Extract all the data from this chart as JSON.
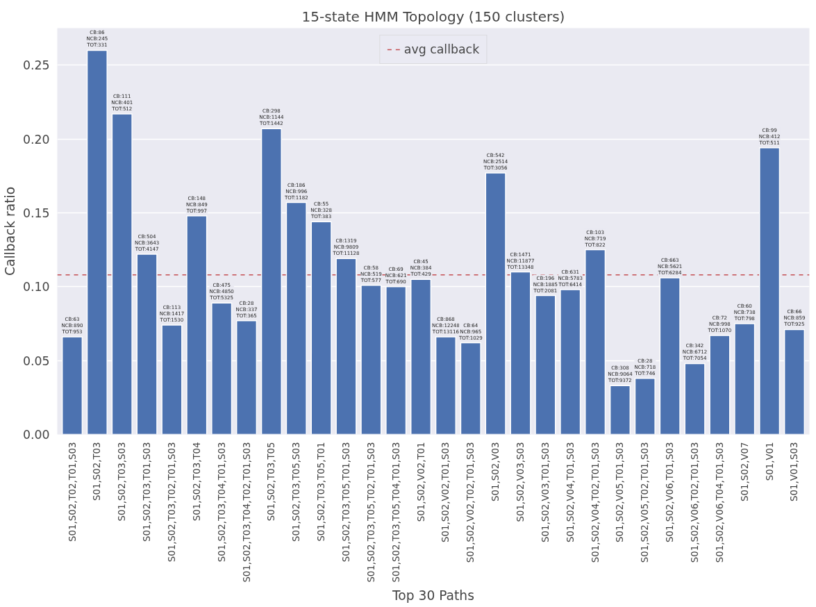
{
  "chart_data": {
    "type": "bar",
    "title": "15-state HMM Topology (150 clusters)",
    "xlabel": "Top 30 Paths",
    "ylabel": "Callback ratio",
    "categories": [
      "S01,S02,T02,T01,S03",
      "S01,S02,T03",
      "S01,S02,T03,S03",
      "S01,S02,T03,T01,S03",
      "S01,S02,T03,T02,T01,S03",
      "S01,S02,T03,T04",
      "S01,S02,T03,T04,T01,S03",
      "S01,S02,T03,T04,T02,T01,S03",
      "S01,S02,T03,T05",
      "S01,S02,T03,T05,S03",
      "S01,S02,T03,T05,T01",
      "S01,S02,T03,T05,T01,S03",
      "S01,S02,T03,T05,T02,T01,S03",
      "S01,S02,T03,T05,T04,T01,S03",
      "S01,S02,V02,T01",
      "S01,S02,V02,T01,S03",
      "S01,S02,V02,T02,T01,S03",
      "S01,S02,V03",
      "S01,S02,V03,S03",
      "S01,S02,V03,T01,S03",
      "S01,S02,V04,T01,S03",
      "S01,S02,V04,T02,T01,S03",
      "S01,S02,V05,T01,S03",
      "S01,S02,V05,T02,T01,S03",
      "S01,S02,V06,T01,S03",
      "S01,S02,V06,T02,T01,S03",
      "S01,S02,V06,T04,T01,S03",
      "S01,S02,V07",
      "S01,V01",
      "S01,V01,S03"
    ],
    "series": [
      {
        "color": "#4c72b0",
        "values": [
          0.066,
          0.26,
          0.217,
          0.122,
          0.074,
          0.148,
          0.089,
          0.077,
          0.207,
          0.157,
          0.144,
          0.119,
          0.101,
          0.1,
          0.105,
          0.066,
          0.062,
          0.177,
          0.11,
          0.094,
          0.098,
          0.125,
          0.033,
          0.038,
          0.106,
          0.048,
          0.067,
          0.075,
          0.194,
          0.071
        ],
        "value_labels": [
          "CB:63\nNCB:890\nTOT:953",
          "CB:86\nNCB:245\nTOT:331",
          "CB:111\nNCB:401\nTOT:512",
          "CB:504\nNCB:3643\nTOT:4147",
          "CB:113\nNCB:1417\nTOT:1530",
          "CB:148\nNCB:849\nTOT:997",
          "CB:475\nNCB:4850\nTOT:5325",
          "CB:28\nNCB:337\nTOT:365",
          "CB:298\nNCB:1144\nTOT:1442",
          "CB:186\nNCB:996\nTOT:1182",
          "CB:55\nNCB:328\nTOT:383",
          "CB:1319\nNCB:9809\nTOT:11128",
          "CB:58\nNCB:519\nTOT:577",
          "CB:69\nNCB:621\nTOT:690",
          "CB:45\nNCB:384\nTOT:429",
          "CB:868\nNCB:12248\nTOT:13116",
          "CB:64\nNCB:965\nTOT:1029",
          "CB:542\nNCB:2514\nTOT:3056",
          "CB:1471\nNCB:11877\nTOT:13348",
          "CB:196\nNCB:1885\nTOT:2081",
          "CB:631\nNCB:5783\nTOT:6414",
          "CB:103\nNCB:719\nTOT:822",
          "CB:308\nNCB:9064\nTOT:9372",
          "CB:28\nNCB:718\nTOT:746",
          "CB:663\nNCB:5621\nTOT:6284",
          "CB:342\nNCB:6712\nTOT:7054",
          "CB:72\nNCB:998\nTOT:1070",
          "CB:60\nNCB:738\nTOT:798",
          "CB:99\nNCB:412\nTOT:511",
          "CB:66\nNCB:859\nTOT:925"
        ]
      }
    ],
    "ylim": [
      0,
      0.275
    ],
    "yticks": [
      {
        "value": 0,
        "label": "0.00"
      },
      {
        "value": 0.05,
        "label": "0.05"
      },
      {
        "value": 0.1,
        "label": "0.10"
      },
      {
        "value": 0.15,
        "label": "0.15"
      },
      {
        "value": 0.2,
        "label": "0.20"
      },
      {
        "value": 0.25,
        "label": "0.25"
      }
    ],
    "ref_lines": [
      {
        "axis": "y",
        "value": 0.108,
        "label": "avg callback",
        "color": "#c44e52",
        "line_style": "dashed"
      }
    ],
    "grid": "y",
    "legend": "top"
  }
}
